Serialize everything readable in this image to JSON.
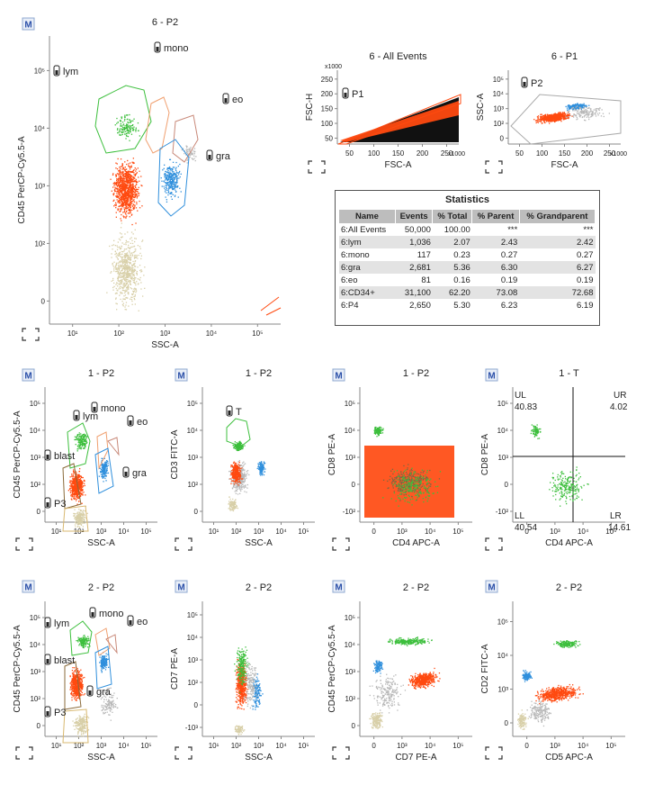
{
  "icons": {
    "m_badge": "M",
    "gate_tool": "gate-tool-icon",
    "axis_adjust": "axis-adjust-icon"
  },
  "colors": {
    "orange": "#ff4a10",
    "blue": "#2f8fdc",
    "green": "#3cbf3c",
    "grey": "#b8b8b8",
    "tan": "#d8cfa8",
    "black": "#111111"
  },
  "statistics": {
    "title": "Statistics",
    "columns": [
      "Name",
      "Events",
      "% Total",
      "% Parent",
      "% Grandparent"
    ],
    "rows": [
      [
        "6:All Events",
        "50,000",
        "100.00",
        "***",
        "***"
      ],
      [
        "6:lym",
        "1,036",
        "2.07",
        "2.43",
        "2.42"
      ],
      [
        "6:mono",
        "117",
        "0.23",
        "0.27",
        "0.27"
      ],
      [
        "6:gra",
        "2,681",
        "5.36",
        "6.30",
        "6.27"
      ],
      [
        "6:eo",
        "81",
        "0.16",
        "0.19",
        "0.19"
      ],
      [
        "6:CD34+",
        "31,100",
        "62.20",
        "73.08",
        "72.68"
      ],
      [
        "6:P4",
        "2,650",
        "5.30",
        "6.23",
        "6.19"
      ]
    ]
  },
  "chart_data": [
    {
      "id": "p6main",
      "type": "scatter",
      "title": "6 - P2",
      "xlabel": "SSC-A",
      "ylabel": "CD45 PerCP-Cy5.5-A",
      "scale": "biexponential",
      "xticks": [
        "10¹",
        "10²",
        "10³",
        "10⁴",
        "10⁵"
      ],
      "yticks": [
        "0",
        "10²",
        "10³",
        "10⁴",
        "10⁵"
      ],
      "gates": [
        "lym",
        "mono",
        "eo",
        "gra"
      ],
      "series": [
        {
          "name": "lym",
          "color": "#3cbf3c"
        },
        {
          "name": "mono",
          "color": "#f0a070"
        },
        {
          "name": "gra",
          "color": "#2f8fdc"
        },
        {
          "name": "eo",
          "color": "#c88878"
        }
      ]
    },
    {
      "id": "p6all",
      "type": "scatter",
      "title": "6 - All Events",
      "xlabel": "FSC-A",
      "ylabel": "FSC-H",
      "xunit": "x1000",
      "yunit": "x1000",
      "xticks": [
        "50",
        "100",
        "150",
        "200",
        "250"
      ],
      "yticks": [
        "50",
        "100",
        "150",
        "200",
        "250"
      ],
      "gates": [
        "P1"
      ]
    },
    {
      "id": "p6p1",
      "type": "scatter",
      "title": "6 - P1",
      "xlabel": "FSC-A",
      "ylabel": "SSC-A",
      "xunit": "x1000",
      "xticks": [
        "50",
        "100",
        "150",
        "200",
        "250"
      ],
      "yticks": [
        "0",
        "10²",
        "10³",
        "10⁴",
        "10⁵"
      ],
      "gates": [
        "P2"
      ]
    },
    {
      "id": "p1a",
      "type": "scatter",
      "title": "1 - P2",
      "xlabel": "SSC-A",
      "ylabel": "CD45 PerCP-Cy5.5-A",
      "xticks": [
        "10¹",
        "10²",
        "10³",
        "10⁴",
        "10⁵"
      ],
      "yticks": [
        "0",
        "10²",
        "10³",
        "10⁴",
        "10⁵"
      ],
      "gates": [
        "lym",
        "mono",
        "eo",
        "blast",
        "gra",
        "P3"
      ]
    },
    {
      "id": "p1b",
      "type": "scatter",
      "title": "1 - P2",
      "xlabel": "SSC-A",
      "ylabel": "CD3 FITC-A",
      "xticks": [
        "10¹",
        "10²",
        "10³",
        "10⁴",
        "10⁵"
      ],
      "yticks": [
        "0",
        "10²",
        "10³",
        "10⁴",
        "10⁵"
      ],
      "gates": [
        "T"
      ]
    },
    {
      "id": "p1c",
      "type": "scatter",
      "title": "1 - P2",
      "xlabel": "CD4 APC-A",
      "ylabel": "CD8 PE-A",
      "xticks": [
        "0",
        "10³",
        "10⁴",
        "10⁵"
      ],
      "yticks": [
        "-10²",
        "0",
        "10³",
        "10⁴",
        "10⁵"
      ]
    },
    {
      "id": "p1d",
      "type": "scatter",
      "title": "1 - T",
      "xlabel": "CD4 APC-A",
      "ylabel": "CD8 PE-A",
      "xticks": [
        "0",
        "10³",
        "10⁴",
        "10⁵"
      ],
      "yticks": [
        "-10²",
        "0",
        "10³",
        "10⁴",
        "10⁵"
      ],
      "quadrants": [
        {
          "name": "UL",
          "value": "40.83"
        },
        {
          "name": "UR",
          "value": "4.02"
        },
        {
          "name": "LL",
          "value": "40.54"
        },
        {
          "name": "LR",
          "value": "14.61"
        }
      ]
    },
    {
      "id": "p2a",
      "type": "scatter",
      "title": "2 - P2",
      "xlabel": "SSC-A",
      "ylabel": "CD45 PerCP-Cy5.5-A",
      "xticks": [
        "10¹",
        "10²",
        "10³",
        "10⁴",
        "10⁵"
      ],
      "yticks": [
        "0",
        "10²",
        "10³",
        "10⁴",
        "10⁵"
      ],
      "gates": [
        "lym",
        "mono",
        "eo",
        "blast",
        "gra",
        "P3"
      ]
    },
    {
      "id": "p2b",
      "type": "scatter",
      "title": "2 - P2",
      "xlabel": "SSC-A",
      "ylabel": "CD7 PE-A",
      "xticks": [
        "10¹",
        "10²",
        "10³",
        "10⁴",
        "10⁵"
      ],
      "yticks": [
        "-10³",
        "0",
        "10²",
        "10³",
        "10⁴",
        "10⁵"
      ]
    },
    {
      "id": "p2c",
      "type": "scatter",
      "title": "2 - P2",
      "xlabel": "CD7 PE-A",
      "ylabel": "CD45 PerCP-Cy5.5-A",
      "xticks": [
        "0",
        "10³",
        "10⁴",
        "10⁵"
      ],
      "yticks": [
        "0",
        "10²",
        "10³",
        "10⁴",
        "10⁵"
      ]
    },
    {
      "id": "p2d",
      "type": "scatter",
      "title": "2 - P2",
      "xlabel": "CD5 APC-A",
      "ylabel": "CD2 FITC-A",
      "xticks": [
        "0",
        "10³",
        "10⁴",
        "10⁵"
      ],
      "yticks": [
        "0",
        "10³",
        "10⁴",
        "10⁵"
      ]
    }
  ]
}
